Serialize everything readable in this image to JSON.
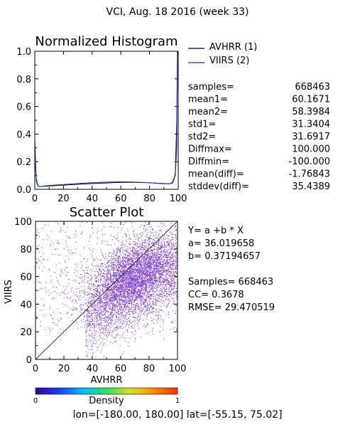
{
  "page_title": "VCI,  Aug. 18 2016 (week 33)",
  "colors": {
    "avhrr": "#000000",
    "viirs": "#1f2fd0",
    "scatter_point": "#6a1fd4",
    "colorbar": [
      "#3a00a0",
      "#1a3cff",
      "#00c0ff",
      "#30e060",
      "#d8e020",
      "#ff8a00",
      "#ff3000"
    ]
  },
  "chart_data": [
    {
      "type": "line",
      "title": "Normalized Histogram",
      "xlim": [
        0,
        100
      ],
      "ylim": [
        0,
        1.0
      ],
      "x_ticks": [
        "0",
        "20",
        "40",
        "60",
        "80",
        "100"
      ],
      "y_ticks": [
        "0.0",
        "0.2",
        "0.4",
        "0.6",
        "0.8",
        "1.0"
      ],
      "series": [
        {
          "name": "AVHRR (1)",
          "x": [
            0,
            0.5,
            1,
            2,
            3,
            4,
            6,
            10,
            20,
            30,
            40,
            50,
            60,
            70,
            80,
            90,
            94,
            96,
            97,
            98,
            99,
            99.5,
            100
          ],
          "values": [
            0.36,
            0.2,
            0.08,
            0.03,
            0.02,
            0.02,
            0.022,
            0.024,
            0.03,
            0.036,
            0.042,
            0.046,
            0.05,
            0.05,
            0.048,
            0.04,
            0.04,
            0.045,
            0.07,
            0.12,
            0.5,
            1.0,
            1.0
          ]
        },
        {
          "name": "VIIRS (2)",
          "x": [
            0,
            0.5,
            1,
            2,
            3,
            4,
            6,
            10,
            20,
            30,
            40,
            50,
            60,
            70,
            80,
            90,
            94,
            96,
            97,
            98,
            99,
            99.5,
            100
          ],
          "values": [
            0.32,
            0.16,
            0.06,
            0.025,
            0.02,
            0.02,
            0.024,
            0.028,
            0.035,
            0.042,
            0.048,
            0.052,
            0.055,
            0.052,
            0.048,
            0.042,
            0.04,
            0.05,
            0.08,
            0.1,
            0.3,
            0.96,
            0.96
          ]
        }
      ],
      "legend": "top-right"
    },
    {
      "type": "scatter",
      "title": "Scatter Plot",
      "xlabel": "AVHRR",
      "ylabel": "VIIRS",
      "xlim": [
        0,
        100
      ],
      "ylim": [
        0,
        100
      ],
      "x_ticks": [
        "0",
        "20",
        "40",
        "60",
        "80",
        "100"
      ],
      "y_ticks": [
        "0",
        "20",
        "40",
        "60",
        "80",
        "100"
      ],
      "reference_line": [
        [
          0,
          0
        ],
        [
          100,
          100
        ]
      ],
      "fit": {
        "a": 36.019658,
        "b": 0.37194657
      },
      "point_cloud": {
        "center": [
          70,
          62
        ],
        "samples": 668463
      },
      "colorbar": {
        "label": "Density",
        "min_label": "0",
        "max_label": "1"
      }
    }
  ],
  "stats": [
    {
      "label": "samples=",
      "value": "668463"
    },
    {
      "label": "mean1=",
      "value": "60.1671"
    },
    {
      "label": "mean2=",
      "value": "58.3984"
    },
    {
      "label": "std1=",
      "value": "31.3404"
    },
    {
      "label": "std2=",
      "value": "31.6917"
    },
    {
      "label": "Diffmax=",
      "value": "100.000"
    },
    {
      "label": "Diffmin=",
      "value": "-100.000"
    },
    {
      "label": "mean(diff)=",
      "value": "-1.76843"
    },
    {
      "label": "stddev(diff)=",
      "value": "35.4389"
    }
  ],
  "regression": {
    "equation": "Y= a +b * X",
    "a_line": "a= 36.019658",
    "b_line": "b= 0.37194657",
    "samples_line": "Samples= 668463",
    "cc_line": "CC=  0.3678",
    "rmse_line": "RMSE= 29.470519"
  },
  "footer": {
    "text": "lon=[-180.00, 180.00] lat=[-55.15, 75.02]"
  }
}
